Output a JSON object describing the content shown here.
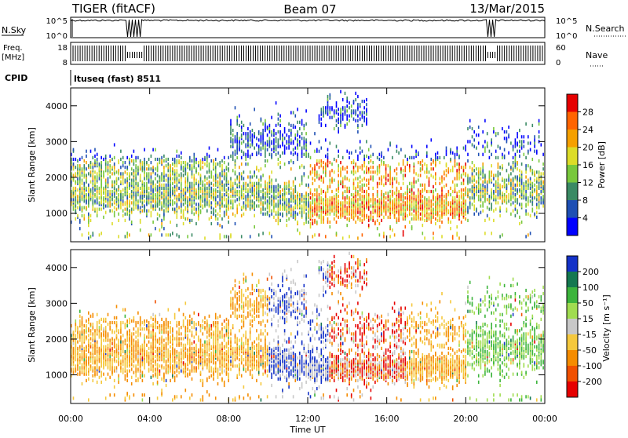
{
  "header": {
    "radar": "TIGER (fitACF)",
    "beam": "Beam 07",
    "date": "13/Mar/2015"
  },
  "top_panels": {
    "nsky_label": "N.Sky",
    "nsky_ticks": [
      "10^5",
      "10^0"
    ],
    "nsearch_label": "N.Search",
    "nsearch_ticks": [
      "10^5",
      "10^0"
    ],
    "freq_label_line1": "Freq.",
    "freq_label_line2": "[MHz]",
    "freq_ticks": [
      "18",
      "8"
    ],
    "nave_label": "Nave",
    "nave_ticks": [
      "60",
      "0"
    ],
    "cpid_label": "CPID",
    "cpid_value": "ltuseq (fast) 8511"
  },
  "chart_data": [
    {
      "type": "heatmap",
      "name": "power-panel",
      "ylabel": "Slant Range [km]",
      "y_ticks": [
        1000,
        2000,
        3000,
        4000
      ],
      "ylim": [
        200,
        4500
      ],
      "xlim_hours": [
        0,
        24
      ],
      "colorbar_label": "Power [dB]",
      "colorbar_ticks": [
        "28",
        "24",
        "20",
        "16",
        "12",
        "8",
        "4"
      ],
      "colors": [
        "#0000ff",
        "#1e4fb4",
        "#3a8a64",
        "#78c83c",
        "#dcdc28",
        "#f5a000",
        "#ff6400",
        "#e60000"
      ]
    },
    {
      "type": "heatmap",
      "name": "velocity-panel",
      "ylabel": "Slant Range [km]",
      "y_ticks": [
        1000,
        2000,
        3000,
        4000
      ],
      "ylim": [
        200,
        4500
      ],
      "xlim_hours": [
        0,
        24
      ],
      "colorbar_label": "Velocity [m s⁻¹]",
      "colorbar_ticks": [
        "200",
        "100",
        "50",
        "15",
        "-15",
        "-50",
        "-100",
        "-200"
      ],
      "colors": [
        "#1432c8",
        "#147850",
        "#3cb43c",
        "#a0dc50",
        "#c8c8c8",
        "#f5c83c",
        "#f58c00",
        "#f05000",
        "#e60000"
      ]
    }
  ],
  "x_axis": {
    "ticks": [
      "00:00",
      "04:00",
      "08:00",
      "12:00",
      "16:00",
      "20:00",
      "00:00"
    ],
    "label": "Time UT"
  }
}
